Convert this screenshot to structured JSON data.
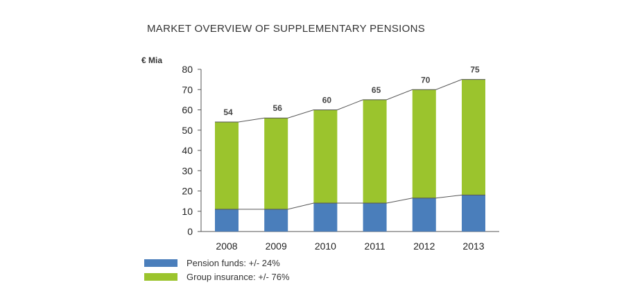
{
  "chart_data": {
    "type": "bar",
    "stacked": true,
    "title": "MARKET OVERVIEW OF SUPPLEMENTARY PENSIONS",
    "unit_label": "€ Mia",
    "categories": [
      "2008",
      "2009",
      "2010",
      "2011",
      "2012",
      "2013"
    ],
    "series": [
      {
        "name": "Pension funds: +/- 24%",
        "color": "#4a7ebb",
        "values": [
          11,
          11,
          14,
          14,
          16.5,
          18
        ]
      },
      {
        "name": "Group insurance: +/- 76%",
        "color": "#9bc42d",
        "values": [
          43,
          45,
          46,
          51,
          53.5,
          57
        ]
      }
    ],
    "totals": [
      54,
      56,
      60,
      65,
      70,
      75
    ],
    "total_labels": [
      "54",
      "56",
      "60",
      "65",
      "70",
      "75"
    ],
    "ylim": [
      0,
      80
    ],
    "yticks": [
      0,
      10,
      20,
      30,
      40,
      50,
      60,
      70,
      80
    ],
    "connector_lines": true,
    "grid": false,
    "legend_position": "bottom-left"
  }
}
